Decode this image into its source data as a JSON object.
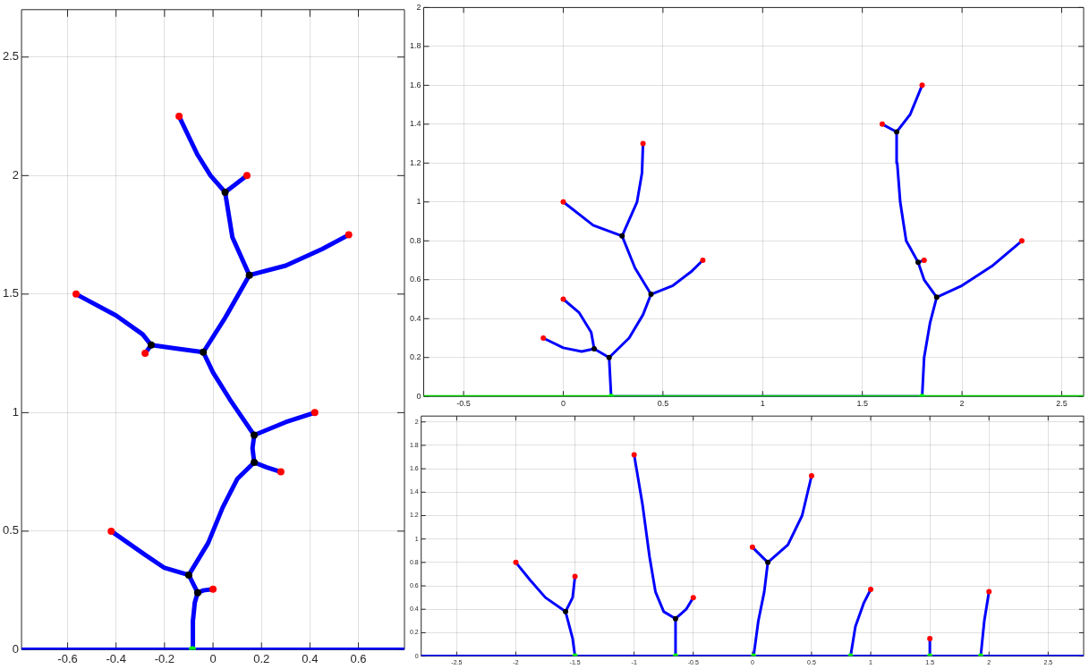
{
  "chart_data": [
    {
      "type": "line",
      "xlim": [
        -0.79,
        0.79
      ],
      "ylim": [
        0,
        2.7
      ],
      "xticks": [
        -0.6,
        -0.4,
        -0.2,
        0,
        0.2,
        0.4,
        0.6
      ],
      "yticks": [
        0,
        0.5,
        1,
        1.5,
        2,
        2.5
      ],
      "grid": true,
      "legend": false,
      "series": [
        {
          "type": "line",
          "color": "#0000ff",
          "x": [
            -0.79,
            0.79
          ],
          "values": [
            0,
            0
          ]
        },
        {
          "type": "line",
          "color": "#0000ff",
          "x": [
            -0.085,
            -0.083,
            -0.075,
            -0.063,
            null,
            -0.063,
            -0.04,
            0,
            null,
            -0.063,
            -0.1,
            null,
            -0.1,
            -0.2,
            -0.28,
            -0.42,
            null,
            -0.1,
            -0.02,
            0.04,
            0.1,
            0.17,
            null,
            0.17,
            0.22,
            0.28,
            null,
            0.17,
            0.163,
            0.17,
            null,
            0.17,
            0.3,
            0.42,
            null,
            0.17,
            0.07,
            0,
            -0.04,
            null,
            -0.04,
            -0.15,
            -0.255,
            null,
            -0.255,
            -0.28,
            null,
            -0.255,
            -0.29,
            -0.4,
            -0.565,
            null,
            -0.04,
            0.05,
            0.15,
            null,
            0.15,
            0.3,
            0.45,
            0.56,
            null,
            0.15,
            0.08,
            0.05,
            null,
            0.05,
            0.14,
            null,
            0.05,
            -0.01,
            -0.065,
            -0.14
          ],
          "values": [
            0,
            0.12,
            0.2,
            0.24,
            null,
            0.24,
            0.25,
            0.255,
            null,
            0.24,
            0.315,
            null,
            0.315,
            0.345,
            0.4,
            0.5,
            null,
            0.315,
            0.45,
            0.6,
            0.72,
            0.79,
            null,
            0.79,
            0.77,
            0.75,
            null,
            0.79,
            0.85,
            0.905,
            null,
            0.905,
            0.96,
            1.0,
            null,
            0.905,
            1.055,
            1.17,
            1.255,
            null,
            1.255,
            1.27,
            1.285,
            null,
            1.285,
            1.25,
            null,
            1.285,
            1.33,
            1.41,
            1.5,
            null,
            1.255,
            1.4,
            1.58,
            null,
            1.58,
            1.62,
            1.69,
            1.75,
            null,
            1.58,
            1.74,
            1.93,
            null,
            1.93,
            2.0,
            null,
            1.93,
            2.0,
            2.09,
            2.25
          ]
        },
        {
          "type": "scatter",
          "marker": "circle",
          "color": "#000000",
          "x": [
            -0.063,
            -0.1,
            0.17,
            0.17,
            -0.04,
            -0.255,
            0.15,
            0.05
          ],
          "values": [
            0.24,
            0.315,
            0.79,
            0.905,
            1.255,
            1.285,
            1.58,
            1.93
          ]
        },
        {
          "type": "scatter",
          "marker": "circle",
          "color": "#ff0000",
          "x": [
            0,
            -0.42,
            0.28,
            0.42,
            -0.565,
            -0.28,
            0.56,
            -0.14,
            0.14
          ],
          "values": [
            0.255,
            0.5,
            0.75,
            1.0,
            1.5,
            1.25,
            1.75,
            2.25,
            2.0
          ]
        },
        {
          "type": "scatter",
          "marker": "circle",
          "color": "#00ff00",
          "x": [
            -0.085
          ],
          "values": [
            0
          ]
        }
      ]
    },
    {
      "type": "line",
      "xlim": [
        -0.7,
        2.61
      ],
      "ylim": [
        0,
        2
      ],
      "xticks": [
        -0.5,
        0,
        0.5,
        1,
        1.5,
        2,
        2.5
      ],
      "yticks": [
        0,
        0.2,
        0.4,
        0.6,
        0.8,
        1,
        1.2,
        1.4,
        1.6,
        1.8,
        2
      ],
      "grid": true,
      "legend": false,
      "series": [
        {
          "type": "line",
          "color": "#00cc00",
          "x": [
            -0.7,
            2.61
          ],
          "values": [
            0,
            0
          ]
        },
        {
          "type": "line",
          "color": "#0000ff",
          "x": [
            0.24,
            1.8,
            null,
            0.24,
            0.235,
            0.23,
            null,
            0.23,
            0.155,
            null,
            0.155,
            0.092,
            0,
            -0.1,
            null,
            0.155,
            0.14,
            0.08,
            0,
            null,
            0.23,
            0.33,
            0.4,
            0.44,
            null,
            0.44,
            0.55,
            0.64,
            0.7,
            null,
            0.44,
            0.36,
            0.295,
            null,
            0.295,
            0.15,
            0,
            null,
            0.295,
            0.37,
            0.395,
            0.4,
            null,
            1.8,
            1.81,
            1.84,
            1.873,
            null,
            1.873,
            2.0,
            2.15,
            2.3,
            null,
            1.873,
            1.81,
            1.78,
            null,
            1.78,
            1.81,
            null,
            1.78,
            1.72,
            1.69,
            1.675,
            1.672,
            null,
            1.672,
            1.6,
            null,
            1.672,
            1.74,
            1.8
          ],
          "values": [
            0,
            0,
            null,
            0,
            0.1,
            0.2,
            null,
            0.2,
            0.245,
            null,
            0.245,
            0.231,
            0.25,
            0.3,
            null,
            0.245,
            0.33,
            0.43,
            0.5,
            null,
            0.2,
            0.3,
            0.42,
            0.525,
            null,
            0.525,
            0.57,
            0.64,
            0.7,
            null,
            0.525,
            0.66,
            0.825,
            null,
            0.825,
            0.88,
            1.0,
            null,
            0.825,
            1.0,
            1.15,
            1.3,
            null,
            0,
            0.2,
            0.38,
            0.51,
            null,
            0.51,
            0.57,
            0.67,
            0.8,
            null,
            0.51,
            0.6,
            0.69,
            null,
            0.69,
            0.7,
            null,
            0.69,
            0.8,
            1.0,
            1.2,
            1.36,
            null,
            1.36,
            1.4,
            null,
            1.36,
            1.45,
            1.6
          ]
        },
        {
          "type": "scatter",
          "marker": "circle",
          "color": "#000000",
          "x": [
            0.23,
            0.155,
            0.44,
            0.295,
            1.873,
            1.78,
            1.672
          ],
          "values": [
            0.2,
            0.245,
            0.525,
            0.825,
            0.51,
            0.69,
            1.36
          ]
        },
        {
          "type": "scatter",
          "marker": "circle",
          "color": "#ff0000",
          "x": [
            -0.1,
            0,
            0.7,
            0,
            0.4,
            2.3,
            1.81,
            1.6,
            1.8
          ],
          "values": [
            0.3,
            0.5,
            0.7,
            1.0,
            1.3,
            0.8,
            0.7,
            1.4,
            1.6
          ]
        },
        {
          "type": "scatter",
          "marker": "circle",
          "color": "#00ff00",
          "x": [
            0.24,
            1.8
          ],
          "values": [
            0,
            0
          ]
        }
      ]
    },
    {
      "type": "line",
      "xlim": [
        -2.8,
        2.8
      ],
      "ylim": [
        0,
        2.05
      ],
      "xticks": [
        -2.5,
        -2,
        -1.5,
        -1,
        -0.5,
        0,
        0.5,
        1,
        1.5,
        2,
        2.5
      ],
      "yticks": [
        0,
        0.2,
        0.4,
        0.6,
        0.8,
        1,
        1.2,
        1.4,
        1.6,
        1.8,
        2
      ],
      "grid": true,
      "legend": false,
      "series": [
        {
          "type": "line",
          "color": "#0000ff",
          "x": [
            -2.8,
            2.8
          ],
          "values": [
            0,
            0
          ]
        },
        {
          "type": "line",
          "color": "#0000ff",
          "x": [
            -1.5,
            -1.52,
            -1.58,
            null,
            -1.58,
            -1.75,
            -1.88,
            -2,
            null,
            -1.58,
            -1.52,
            -1.5,
            null,
            -0.65,
            -0.65,
            null,
            -0.65,
            -0.75,
            -0.82,
            -0.87,
            -0.93,
            -1.0,
            null,
            -0.65,
            -0.56,
            -0.5,
            null,
            0.01,
            0.05,
            0.1,
            0.13,
            null,
            0.13,
            0,
            null,
            0.13,
            0.3,
            0.42,
            0.5,
            null,
            0.83,
            0.87,
            0.94,
            1.0,
            null,
            1.5,
            1.5,
            null,
            1.93,
            1.96,
            2.0
          ],
          "values": [
            0,
            0.15,
            0.38,
            null,
            0.38,
            0.5,
            0.65,
            0.8,
            null,
            0.38,
            0.5,
            0.68,
            null,
            0,
            0.32,
            null,
            0.32,
            0.38,
            0.55,
            0.85,
            1.3,
            1.72,
            null,
            0.32,
            0.4,
            0.5,
            null,
            0,
            0.3,
            0.55,
            0.8,
            null,
            0.8,
            0.93,
            null,
            0.8,
            0.95,
            1.2,
            1.54,
            null,
            0,
            0.25,
            0.45,
            0.57,
            null,
            0,
            0.15,
            null,
            0,
            0.3,
            0.55
          ]
        },
        {
          "type": "scatter",
          "marker": "circle",
          "color": "#000000",
          "x": [
            -1.58,
            -0.65,
            0.13
          ],
          "values": [
            0.38,
            0.32,
            0.8
          ]
        },
        {
          "type": "scatter",
          "marker": "circle",
          "color": "#ff0000",
          "x": [
            -2,
            -1.5,
            -1.0,
            -0.5,
            0,
            0.5,
            1.0,
            1.5,
            2.0
          ],
          "values": [
            0.8,
            0.68,
            1.72,
            0.5,
            0.93,
            1.54,
            0.57,
            0.15,
            0.55
          ]
        },
        {
          "type": "scatter",
          "marker": "circle",
          "color": "#00ff00",
          "x": [
            -1.5,
            -0.65,
            0.01,
            0.83,
            1.5,
            1.93
          ],
          "values": [
            0,
            0,
            0,
            0,
            0,
            0
          ]
        }
      ]
    }
  ]
}
